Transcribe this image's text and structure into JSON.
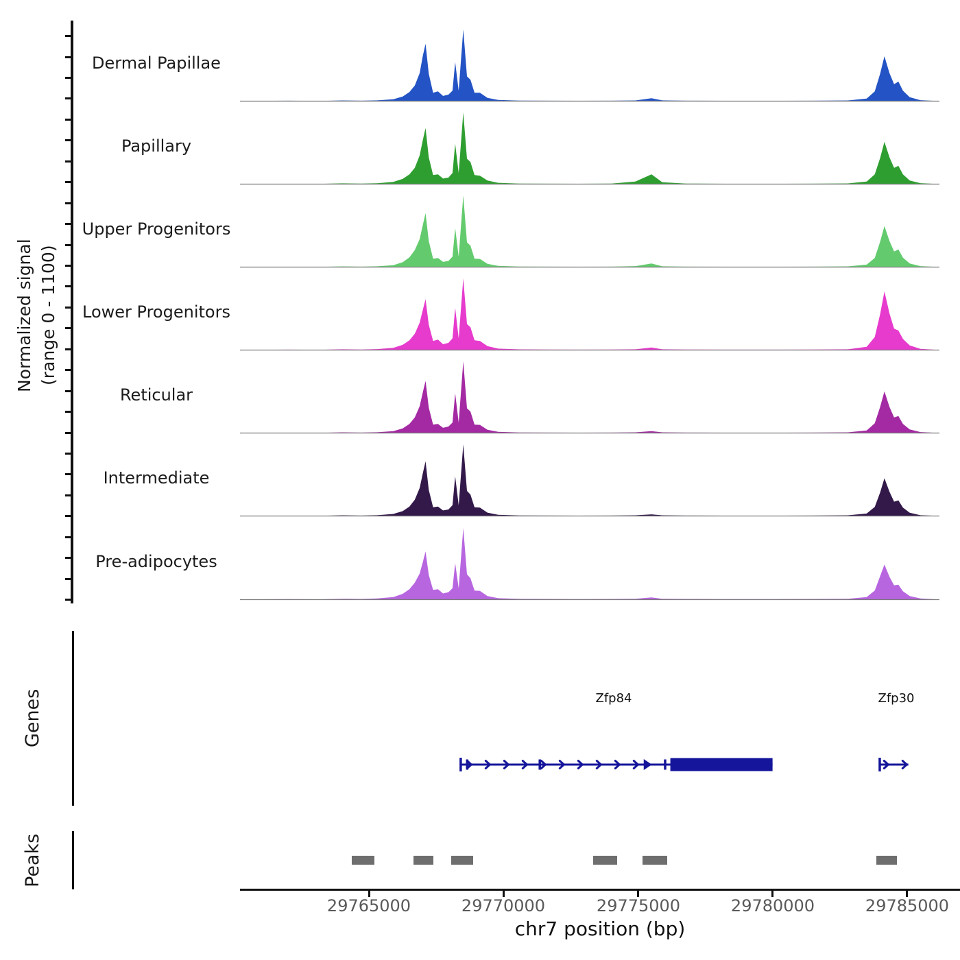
{
  "figure": {
    "ylabel_line1": "Normalized signal",
    "ylabel_line2": "(range 0 - 1100)",
    "genes_section_label": "Genes",
    "peaks_section_label": "Peaks",
    "xlabel": "chr7 position (bp)"
  },
  "chart_data": {
    "type": "area",
    "title": "",
    "xlabel": "chr7 position (bp)",
    "ylabel": "Normalized signal (range 0 - 1100)",
    "xlim": [
      29760200,
      29786970
    ],
    "x_ticks": [
      29765000,
      29770000,
      29775000,
      29780000,
      29785000
    ],
    "y_range_per_track": [
      0,
      1100
    ],
    "grid": false,
    "x": [
      29760400,
      29762000,
      29763200,
      29764000,
      29764700,
      29765300,
      29765900,
      29766250,
      29766500,
      29766700,
      29766880,
      29767000,
      29767100,
      29767220,
      29767380,
      29767560,
      29767750,
      29767950,
      29768100,
      29768200,
      29768330,
      29768500,
      29768640,
      29768770,
      29768920,
      29769120,
      29769400,
      29769800,
      29770600,
      29771600,
      29772800,
      29774000,
      29774900,
      29775500,
      29775900,
      29776800,
      29778200,
      29780000,
      29781500,
      29782800,
      29783500,
      29783800,
      29784000,
      29784160,
      29784350,
      29784520,
      29784680,
      29784850,
      29785100,
      29785500,
      29786100
    ],
    "series": [
      {
        "name": "Dermal Papillae",
        "color": "#2353c4",
        "values": [
          2,
          6,
          3,
          10,
          6,
          12,
          30,
          70,
          140,
          240,
          430,
          700,
          880,
          420,
          130,
          150,
          80,
          100,
          160,
          600,
          160,
          1100,
          380,
          330,
          130,
          130,
          50,
          18,
          8,
          6,
          5,
          6,
          10,
          45,
          12,
          6,
          5,
          5,
          6,
          10,
          40,
          150,
          420,
          690,
          430,
          260,
          300,
          160,
          60,
          15,
          3
        ]
      },
      {
        "name": "Papillary",
        "color": "#2f9e30",
        "values": [
          2,
          5,
          4,
          12,
          8,
          14,
          35,
          80,
          150,
          250,
          440,
          680,
          860,
          410,
          140,
          150,
          85,
          100,
          170,
          620,
          170,
          1100,
          390,
          340,
          140,
          130,
          55,
          20,
          8,
          6,
          5,
          8,
          40,
          150,
          30,
          8,
          5,
          5,
          6,
          10,
          40,
          150,
          400,
          650,
          410,
          250,
          280,
          150,
          55,
          15,
          3
        ]
      },
      {
        "name": "Upper Progenitors",
        "color": "#63cb6e",
        "values": [
          2,
          5,
          3,
          10,
          6,
          12,
          30,
          75,
          150,
          260,
          430,
          650,
          830,
          400,
          130,
          140,
          80,
          95,
          160,
          600,
          160,
          1100,
          380,
          330,
          130,
          125,
          50,
          18,
          8,
          6,
          5,
          6,
          15,
          55,
          12,
          6,
          5,
          5,
          6,
          10,
          38,
          140,
          390,
          630,
          400,
          240,
          270,
          145,
          55,
          15,
          3
        ]
      },
      {
        "name": "Lower Progenitors",
        "color": "#e63bcd",
        "values": [
          2,
          6,
          4,
          12,
          8,
          15,
          35,
          80,
          150,
          250,
          420,
          620,
          780,
          390,
          140,
          160,
          90,
          110,
          180,
          650,
          180,
          1100,
          400,
          350,
          150,
          140,
          60,
          22,
          10,
          8,
          6,
          8,
          12,
          40,
          12,
          8,
          6,
          6,
          8,
          12,
          50,
          200,
          550,
          900,
          560,
          330,
          300,
          170,
          70,
          18,
          4
        ]
      },
      {
        "name": "Reticular",
        "color": "#a32aa3",
        "values": [
          2,
          5,
          3,
          10,
          6,
          12,
          30,
          70,
          140,
          240,
          410,
          630,
          800,
          390,
          130,
          140,
          80,
          100,
          160,
          610,
          160,
          1100,
          380,
          330,
          130,
          125,
          50,
          18,
          8,
          6,
          5,
          6,
          10,
          30,
          10,
          6,
          5,
          5,
          6,
          10,
          40,
          150,
          400,
          640,
          400,
          240,
          260,
          140,
          55,
          15,
          3
        ]
      },
      {
        "name": "Intermediate",
        "color": "#33194a",
        "values": [
          2,
          5,
          3,
          10,
          6,
          12,
          32,
          75,
          145,
          250,
          430,
          660,
          840,
          400,
          135,
          145,
          85,
          100,
          165,
          610,
          165,
          1100,
          385,
          330,
          135,
          130,
          52,
          18,
          8,
          6,
          5,
          6,
          10,
          25,
          10,
          6,
          5,
          5,
          6,
          10,
          38,
          140,
          360,
          580,
          370,
          220,
          240,
          130,
          50,
          12,
          3
        ]
      },
      {
        "name": "Pre-adipocytes",
        "color": "#b766e0",
        "values": [
          3,
          8,
          5,
          14,
          10,
          18,
          40,
          90,
          160,
          260,
          400,
          580,
          740,
          380,
          150,
          160,
          95,
          115,
          175,
          560,
          175,
          1100,
          390,
          330,
          140,
          135,
          55,
          22,
          12,
          10,
          8,
          10,
          14,
          35,
          14,
          10,
          8,
          8,
          10,
          14,
          40,
          140,
          360,
          540,
          350,
          220,
          230,
          130,
          55,
          18,
          4
        ]
      }
    ],
    "genes": [
      {
        "name": "Zfp84",
        "strand": "+",
        "label_bp": 29774100,
        "start": 29768400,
        "end": 29780000,
        "thick_start": 29776200,
        "exon_ticks": [
          29768400,
          29768640,
          29771340,
          29776000
        ],
        "big_arrow": 29775440,
        "arrow_start": 29768800,
        "arrow_end": 29775200
      },
      {
        "name": "Zfp30",
        "strand": "+",
        "label_bp": 29784600,
        "start": 29783980,
        "end": 29785050,
        "thick_start": null,
        "exon_ticks": [
          29783980
        ],
        "big_arrow": null,
        "arrow_start": 29784300,
        "arrow_end": 29785050
      }
    ],
    "peaks": [
      [
        29764360,
        29765200
      ],
      [
        29766650,
        29767390
      ],
      [
        29768050,
        29768870
      ],
      [
        29773330,
        29774220
      ],
      [
        29775160,
        29776080
      ],
      [
        29783860,
        29784620
      ]
    ],
    "colors": {
      "gene": "#15159b",
      "peak": "#6e6e6e",
      "baseline": "#7a7a7a",
      "axis": "#111111",
      "tick_label": "#595959"
    }
  }
}
